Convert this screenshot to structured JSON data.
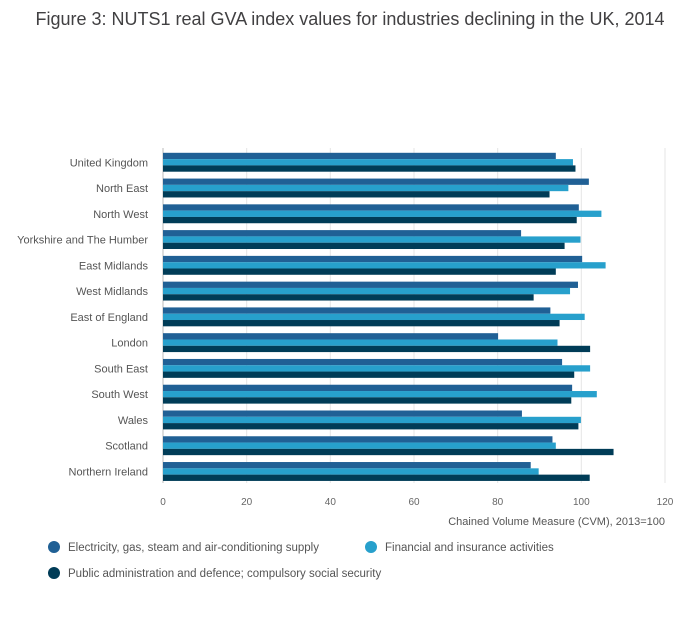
{
  "chart_data": {
    "type": "bar",
    "orientation": "horizontal",
    "title": "Figure 3: NUTS1 real GVA index values for industries declining in the UK, 2014",
    "xlabel": "Chained Volume Measure (CVM), 2013=100",
    "ylabel": "",
    "xlim": [
      0,
      120
    ],
    "xticks": [
      0,
      20,
      40,
      60,
      80,
      100,
      120
    ],
    "grid": true,
    "legend_position": "bottom-left",
    "categories": [
      "United Kingdom",
      "North East",
      "North West",
      "Yorkshire and The Humber",
      "East Midlands",
      "West Midlands",
      "East of England",
      "London",
      "South East",
      "South West",
      "Wales",
      "Scotland",
      "Northern Ireland"
    ],
    "series": [
      {
        "name": "Electricity, gas, steam and air-conditioning supply",
        "color": "#206095",
        "values": [
          93.9,
          101.8,
          99.4,
          85.6,
          100.2,
          99.2,
          92.6,
          80.1,
          95.4,
          97.8,
          85.8,
          93.1,
          87.9
        ]
      },
      {
        "name": "Financial and insurance activities",
        "color": "#27a0cc",
        "values": [
          98.0,
          96.9,
          104.8,
          99.8,
          105.8,
          97.3,
          100.8,
          94.3,
          102.1,
          103.7,
          99.9,
          93.9,
          89.8
        ]
      },
      {
        "name": "Public administration and defence; compulsory social security",
        "color": "#003c57",
        "values": [
          98.6,
          92.4,
          98.9,
          96.0,
          93.9,
          88.6,
          94.8,
          102.1,
          98.3,
          97.6,
          99.3,
          107.7,
          102.0
        ]
      }
    ]
  }
}
